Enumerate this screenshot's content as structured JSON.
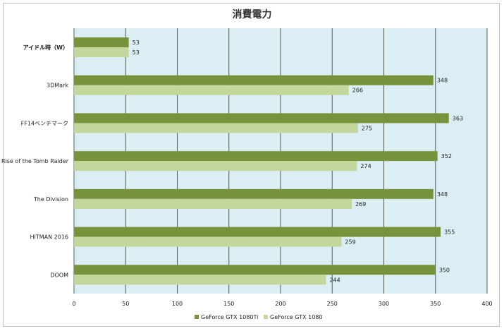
{
  "chart_data": {
    "type": "bar",
    "orientation": "horizontal",
    "title": "消費電力",
    "categories": [
      "アイドル時（W）",
      "3DMark",
      "FF14ベンチマーク",
      "Rise of the Tomb Raider",
      "The Division",
      "HITMAN 2016",
      "DOOM"
    ],
    "series": [
      {
        "name": "GeForce GTX 1080Ti",
        "color": "#77933c",
        "values": [
          53,
          348,
          363,
          352,
          348,
          355,
          350
        ]
      },
      {
        "name": "GeForce GTX 1080",
        "color": "#c3d69b",
        "values": [
          53,
          266,
          275,
          274,
          269,
          259,
          244
        ]
      }
    ],
    "xlim": [
      0,
      400
    ],
    "xticks": [
      0,
      50,
      100,
      150,
      200,
      250,
      300,
      350,
      400
    ],
    "grid": true,
    "plot_background": "#dbeef4",
    "legend": "bottom"
  }
}
